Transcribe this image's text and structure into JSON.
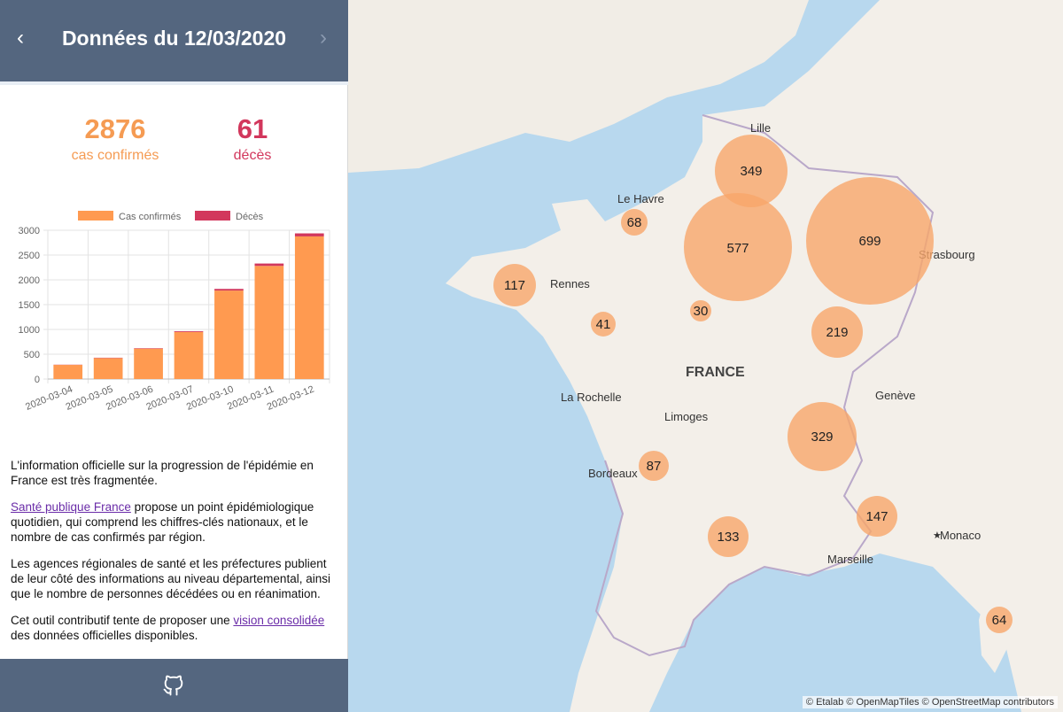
{
  "header": {
    "title": "Données du 12/03/2020",
    "prev_icon": "chevron-left-icon",
    "next_icon": "chevron-right-icon"
  },
  "stats": {
    "cases": {
      "value": "2876",
      "label": "cas confirmés",
      "color": "#f59b53"
    },
    "deaths": {
      "value": "61",
      "label": "décès",
      "color": "#d2375c"
    }
  },
  "chart_data": {
    "type": "bar",
    "stacked": true,
    "categories": [
      "2020-03-04",
      "2020-03-05",
      "2020-03-06",
      "2020-03-07",
      "2020-03-10",
      "2020-03-11",
      "2020-03-12"
    ],
    "series": [
      {
        "name": "Cas confirmés",
        "color": "#ff9a50",
        "values": [
          285,
          423,
          613,
          949,
          1784,
          2281,
          2876
        ]
      },
      {
        "name": "Décès",
        "color": "#d2375c",
        "values": [
          4,
          7,
          9,
          16,
          33,
          48,
          61
        ]
      }
    ],
    "ylim": [
      0,
      3000
    ],
    "yticks": [
      0,
      500,
      1000,
      1500,
      2000,
      2500,
      3000
    ],
    "legend": "top",
    "grid": true
  },
  "text": {
    "p1": "L'information officielle sur la progression de l'épidémie en France est très fragmentée.",
    "p2_link": "Santé publique France",
    "p2": " propose un point épidémiologique quotidien, qui comprend les chiffres-clés nationaux, et le nombre de cas confirmés par région.",
    "p3": "Les agences régionales de santé et les préfectures publient de leur côté des informations au niveau départemental, ainsi que le nombre de personnes décédées ou en réanimation.",
    "p4_before": "Cet outil contributif tente de proposer une ",
    "p4_link": "vision consolidée",
    "p4_after": " des données officielles disponibles."
  },
  "footer": {
    "icon": "github-icon"
  },
  "map": {
    "country_label": "FRANCE",
    "cities": [
      "Lille",
      "Le Havre",
      "Rennes",
      "Strasbourg",
      "La Rochelle",
      "Limoges",
      "Genève",
      "Bordeaux",
      "Monaco",
      "Marseille"
    ],
    "bubbles": [
      "349",
      "68",
      "577",
      "699",
      "117",
      "30",
      "41",
      "219",
      "329",
      "87",
      "147",
      "133",
      "64"
    ],
    "bubble_color": "#f7a66a",
    "attribution": "© Etalab © OpenMapTiles © OpenStreetMap contributors"
  }
}
